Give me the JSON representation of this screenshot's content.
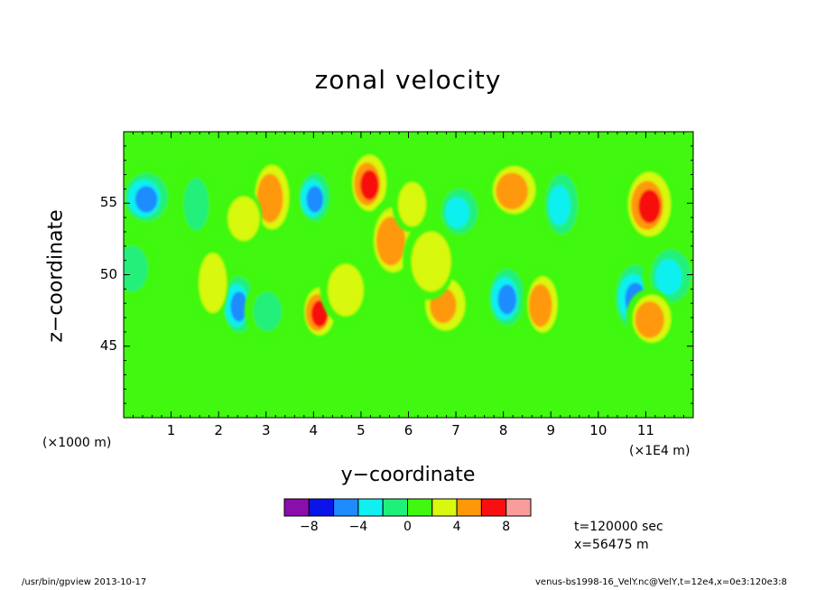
{
  "header": {
    "title": "zonal velocity"
  },
  "axes": {
    "xlabel": "y−coordinate",
    "ylabel": "z−coordinate",
    "x_unit_left": "(×1000 m)",
    "x_unit_right": "(×1E4 m)",
    "x_ticks": [
      "1",
      "2",
      "3",
      "4",
      "5",
      "6",
      "7",
      "8",
      "9",
      "10",
      "11"
    ],
    "y_ticks": [
      "45",
      "50",
      "55"
    ]
  },
  "info": {
    "time": "t=120000 sec",
    "position": "x=56475 m"
  },
  "footer": {
    "left": "/usr/bin/gpview   2013-10-17",
    "right": "venus-bs1998-16_VelY.nc@VelY,t=12e4,x=0e3:120e3:8"
  },
  "colorbar": {
    "labels": [
      "−8",
      "−4",
      "0",
      "4",
      "8"
    ],
    "levels": [
      -10,
      -8,
      -6,
      -4,
      -2,
      0,
      2,
      4,
      6,
      8,
      10
    ],
    "colors": [
      "#8a0eaa",
      "#0a14e8",
      "#1e8cff",
      "#10f0f0",
      "#20f07a",
      "#40f810",
      "#d8f810",
      "#ff9808",
      "#f81010",
      "#fa9c9c"
    ]
  },
  "chart_data": {
    "type": "heatmap",
    "title": "zonal velocity",
    "xlabel": "y−coordinate",
    "ylabel": "z−coordinate",
    "xlim": [
      0,
      120000
    ],
    "ylim": [
      40,
      60
    ],
    "x_ticks": [
      10000,
      20000,
      30000,
      40000,
      50000,
      60000,
      70000,
      80000,
      90000,
      100000,
      110000
    ],
    "y_ticks": [
      45,
      50,
      55
    ],
    "contour_levels": [
      -10,
      -8,
      -6,
      -4,
      -2,
      0,
      2,
      4,
      6,
      8,
      10
    ],
    "background_value": 1,
    "features": [
      {
        "y": 40000,
        "z": 55.5,
        "value": -6
      },
      {
        "y": 80500,
        "z": 48.5,
        "value": -6
      },
      {
        "y": 107500,
        "z": 48.5,
        "value": -6
      },
      {
        "y": 4500,
        "z": 55.5,
        "value": -5
      },
      {
        "y": 24000,
        "z": 48,
        "value": -5
      },
      {
        "y": 92000,
        "z": 55,
        "value": -3
      },
      {
        "y": 70500,
        "z": 54.5,
        "value": -3
      },
      {
        "y": 115000,
        "z": 50,
        "value": -3
      },
      {
        "y": 15000,
        "z": 55,
        "value": -2
      },
      {
        "y": 30000,
        "z": 47.5,
        "value": -2
      },
      {
        "y": 1500,
        "z": 50.5,
        "value": -2
      },
      {
        "y": 110500,
        "z": 55,
        "value": 6
      },
      {
        "y": 41000,
        "z": 47.5,
        "value": 6
      },
      {
        "y": 51500,
        "z": 56.5,
        "value": 6
      },
      {
        "y": 56500,
        "z": 52.5,
        "value": 5
      },
      {
        "y": 82000,
        "z": 56,
        "value": 5
      },
      {
        "y": 88000,
        "z": 48,
        "value": 5
      },
      {
        "y": 31000,
        "z": 55.5,
        "value": 5
      },
      {
        "y": 111000,
        "z": 47,
        "value": 5
      },
      {
        "y": 67500,
        "z": 48,
        "value": 4
      },
      {
        "y": 18500,
        "z": 49.5,
        "value": 3
      },
      {
        "y": 25000,
        "z": 54,
        "value": 3
      },
      {
        "y": 46500,
        "z": 49,
        "value": 3
      },
      {
        "y": 64500,
        "z": 51,
        "value": 3
      },
      {
        "y": 60500,
        "z": 55,
        "value": 3
      }
    ]
  }
}
